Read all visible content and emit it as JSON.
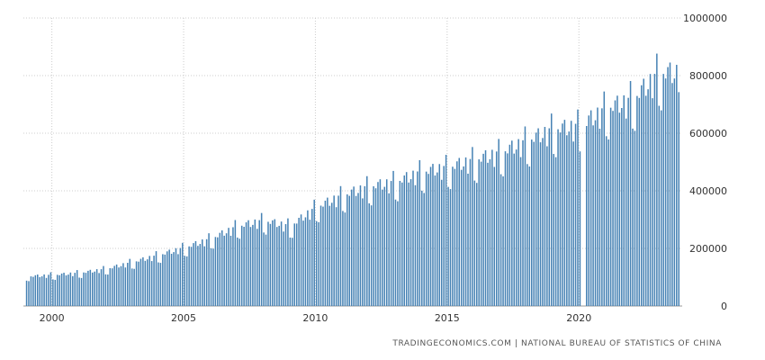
{
  "chart_data": {
    "type": "bar",
    "title": "",
    "xlabel": "",
    "ylabel": "",
    "x_range": [
      1998.92,
      2023.92
    ],
    "ylim": [
      0,
      1000000
    ],
    "y_ticks": [
      0,
      200000,
      400000,
      600000,
      800000,
      1000000
    ],
    "y_tick_labels": [
      "0",
      "200000",
      "400000",
      "600000",
      "800000",
      "1000000"
    ],
    "x_ticks": [
      2000,
      2005,
      2010,
      2015,
      2020
    ],
    "x_tick_labels": [
      "2000",
      "2005",
      "2010",
      "2015",
      "2020"
    ],
    "grid": true,
    "bar_color": "#4682b4",
    "series": [
      {
        "x_start": "1999-01",
        "frequency": "monthly",
        "x_end": "2023-10",
        "annual_anchor_values": {
          "1999": 100000,
          "2000": 105000,
          "2001": 112000,
          "2002": 125000,
          "2003": 148000,
          "2004": 172000,
          "2005": 198000,
          "2006": 228000,
          "2007": 270000,
          "2008": 290000,
          "2009": 270000,
          "2010": 335000,
          "2011": 375000,
          "2012": 405000,
          "2013": 420000,
          "2014": 455000,
          "2015": 470000,
          "2016": 495000,
          "2017": 520000,
          "2018": 560000,
          "2019": 600000,
          "2020": 610000,
          "2021": 670000,
          "2022": 700000,
          "2023": 790000
        }
      }
    ]
  },
  "footer": {
    "source": "TRADINGECONOMICS.COM | NATIONAL BUREAU OF STATISTICS OF CHINA"
  },
  "colors": {
    "bar": "#4682b4",
    "grid": "#cccccc",
    "axis": "#999999"
  }
}
